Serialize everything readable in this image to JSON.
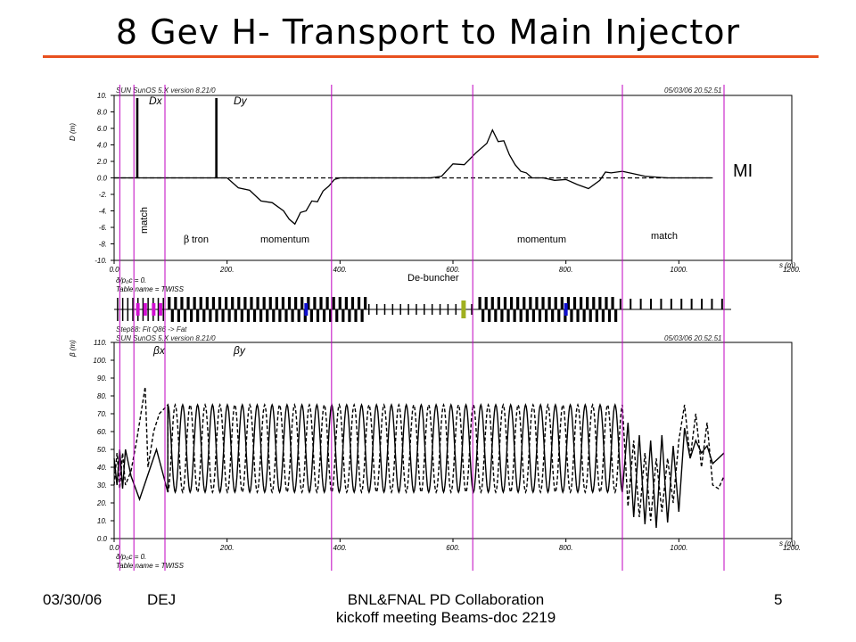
{
  "slide": {
    "title": "8 Gev H- Transport to Main Injector",
    "accent_color": "#e8501f",
    "footer": {
      "date": "03/30/06",
      "author": "DEJ",
      "center_line1": "BNL&FNAL PD Collaboration",
      "center_line2": "kickoff meeting Beams-doc 2219",
      "page": "5"
    }
  },
  "annotations": {
    "match_left": "match",
    "btron_symbol": "β",
    "btron_text": "tron",
    "momentum_1": "momentum",
    "momentum_2": "momentum",
    "match_right": "match",
    "debuncher": "De-buncher",
    "mi": "MI",
    "marker_color": "#c000c0",
    "marker_positions_m": [
      10,
      35,
      90,
      385,
      635,
      900,
      1080
    ]
  },
  "chart_data": [
    {
      "type": "line",
      "header_left": "SUN SunOS 5.X version 8.21/0",
      "header_right": "05/03/06 20.52.51",
      "ylabel": "D (m)",
      "xlabel": "s (m)",
      "xlim": [
        0,
        1200
      ],
      "ylim": [
        -10,
        10
      ],
      "x_ticks": [
        0,
        200,
        400,
        600,
        800,
        1000,
        1200
      ],
      "x_tick_labels": [
        "0.0",
        "200.",
        "400.",
        "600.",
        "800.",
        "1000.",
        "1200."
      ],
      "y_ticks": [
        10,
        8,
        6,
        4,
        2,
        0,
        -2,
        -4,
        -6,
        -8,
        -10
      ],
      "y_tick_labels": [
        "10.",
        "8.0",
        "6.0",
        "4.0",
        "2.0",
        "0.0",
        "-2.",
        "-4.",
        "-6.",
        "-8.",
        "-10."
      ],
      "series": [
        {
          "name": "Dx",
          "style": "solid",
          "x": [
            0,
            40,
            40,
            42,
            42,
            180,
            180,
            182,
            182,
            200,
            220,
            240,
            260,
            280,
            300,
            310,
            320,
            330,
            340,
            350,
            360,
            370,
            380,
            390,
            400,
            410,
            420,
            440,
            460,
            560,
            580,
            600,
            620,
            640,
            660,
            670,
            680,
            690,
            700,
            710,
            720,
            730,
            740,
            750,
            760,
            780,
            800,
            820,
            840,
            860,
            870,
            880,
            900,
            920,
            940,
            960,
            980,
            1000,
            1020,
            1040,
            1060
          ],
          "y": [
            0,
            0,
            9.6,
            9.6,
            0,
            0,
            9.6,
            9.6,
            0,
            0,
            -1.2,
            -1.5,
            -2.8,
            -3,
            -4,
            -5,
            -5.6,
            -4.2,
            -4,
            -2.8,
            -2.9,
            -1.6,
            -1,
            -0.2,
            0,
            0,
            0,
            0,
            0,
            0,
            0.2,
            1.7,
            1.6,
            3,
            4.2,
            5.8,
            4.4,
            4.5,
            2.8,
            1.6,
            0.8,
            0.6,
            0,
            0,
            0,
            -0.3,
            -0.2,
            -0.8,
            -1.3,
            -0.3,
            0.7,
            0.6,
            0.8,
            0.5,
            0.2,
            0.1,
            0,
            0,
            0,
            0,
            0
          ]
        },
        {
          "name": "Dy",
          "style": "dashed",
          "x": [
            0,
            1060
          ],
          "y": [
            0,
            0
          ]
        }
      ],
      "series_labels": [
        "Dx",
        "Dy"
      ],
      "footer_lines": [
        "δ/p₀c = 0.",
        "Table name = TWISS"
      ]
    },
    {
      "type": "line",
      "header_left": "SUN SunOS 5.X version 8.21/0",
      "header_right": "05/03/06 20.52.51",
      "ylabel": "β (m)",
      "xlabel": "s (m)",
      "subheader": "Step88: Fit Q86 -> Fat",
      "xlim": [
        0,
        1200
      ],
      "ylim": [
        0,
        110
      ],
      "x_ticks": [
        0,
        200,
        400,
        600,
        800,
        1000,
        1200
      ],
      "x_tick_labels": [
        "0.0",
        "200.",
        "400.",
        "600.",
        "800.",
        "1000.",
        "1200."
      ],
      "y_ticks": [
        0,
        10,
        20,
        30,
        40,
        50,
        60,
        70,
        80,
        90,
        100,
        110
      ],
      "y_tick_labels": [
        "0.0",
        "10.",
        "20.",
        "30.",
        "40.",
        "50.",
        "60.",
        "70.",
        "80.",
        "90.",
        "100.",
        "110."
      ],
      "fodo_period_m": 26.4,
      "fodo_start_m": 95,
      "fodo_end_m": 900,
      "fodo_beta_max": 75,
      "fodo_beta_min": 26,
      "series": [
        {
          "name": "βx",
          "style": "solid",
          "x": [
            0,
            5,
            10,
            15,
            20,
            30,
            45,
            60,
            75,
            95,
            900,
            910,
            920,
            930,
            940,
            950,
            960,
            970,
            980,
            990,
            1000,
            1010,
            1020,
            1030,
            1040,
            1050,
            1060,
            1070,
            1080
          ],
          "y": [
            45,
            30,
            50,
            28,
            50,
            35,
            22,
            36,
            50,
            26,
            26,
            65,
            12,
            58,
            8,
            55,
            6,
            58,
            9,
            52,
            15,
            62,
            45,
            55,
            48,
            52,
            42,
            45,
            48
          ]
        },
        {
          "name": "βy",
          "style": "dashed",
          "x": [
            0,
            5,
            10,
            15,
            20,
            30,
            40,
            55,
            60,
            70,
            80,
            95,
            900,
            910,
            920,
            930,
            940,
            950,
            960,
            970,
            980,
            990,
            1000,
            1010,
            1020,
            1030,
            1040,
            1050,
            1060,
            1070,
            1080
          ],
          "y": [
            30,
            48,
            28,
            48,
            30,
            38,
            55,
            85,
            40,
            60,
            70,
            75,
            75,
            18,
            55,
            12,
            48,
            10,
            45,
            15,
            45,
            20,
            55,
            75,
            45,
            70,
            40,
            65,
            30,
            28,
            35
          ]
        }
      ],
      "series_labels": [
        "βx",
        "βy"
      ],
      "footer_lines": [
        "δ/p₀c = 0.",
        "Table name = TWISS"
      ]
    }
  ]
}
